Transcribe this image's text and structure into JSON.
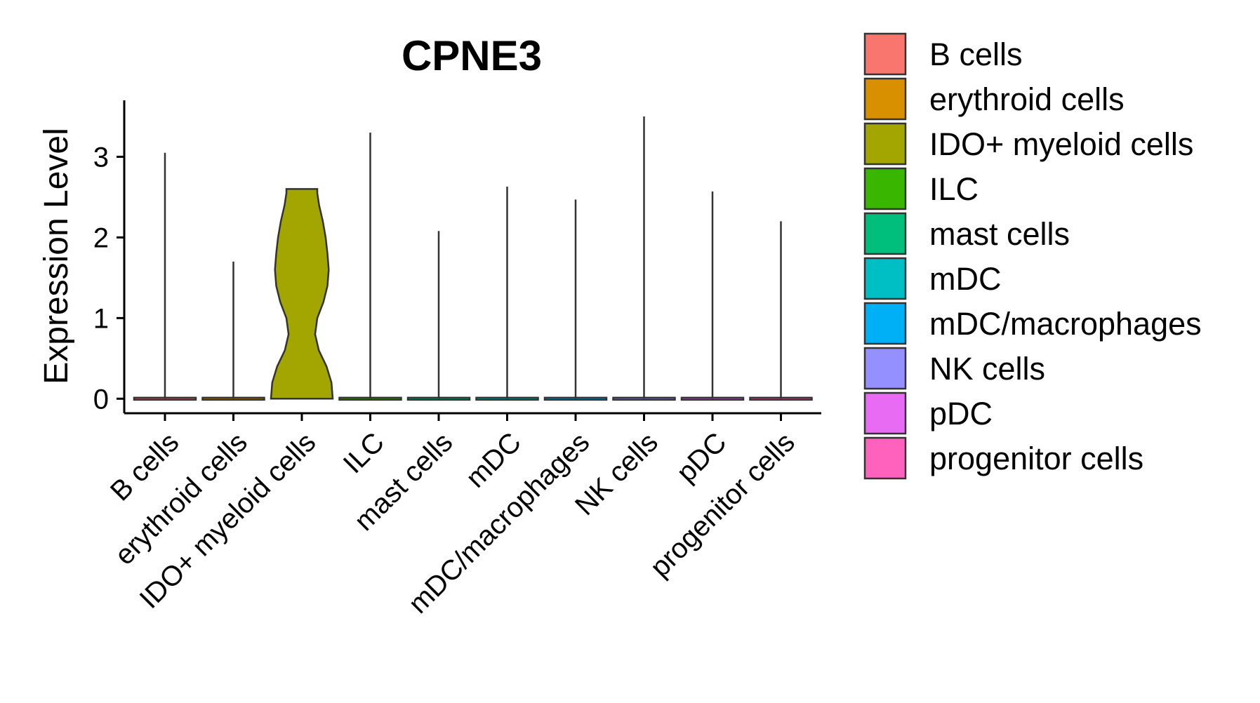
{
  "chart_data": {
    "type": "violin",
    "title": "CPNE3",
    "xlabel": "",
    "ylabel": "Expression Level",
    "ylim": [
      -0.18,
      3.7
    ],
    "yticks": [
      0,
      1,
      2,
      3
    ],
    "categories": [
      "B cells",
      "erythroid cells",
      "IDO+ myeloid cells",
      "ILC",
      "mast cells",
      "mDC",
      "mDC/macrophages",
      "NK cells",
      "pDC",
      "progenitor cells"
    ],
    "max_values": [
      3.05,
      1.7,
      2.6,
      3.3,
      2.08,
      2.63,
      2.47,
      3.5,
      2.57,
      2.2
    ],
    "density_profiles": [
      null,
      null,
      [
        [
          0,
          1.0
        ],
        [
          0.2,
          0.96
        ],
        [
          0.4,
          0.8
        ],
        [
          0.6,
          0.55
        ],
        [
          0.8,
          0.43
        ],
        [
          1.0,
          0.5
        ],
        [
          1.2,
          0.7
        ],
        [
          1.4,
          0.83
        ],
        [
          1.6,
          0.87
        ],
        [
          1.8,
          0.83
        ],
        [
          2.0,
          0.77
        ],
        [
          2.2,
          0.68
        ],
        [
          2.4,
          0.56
        ],
        [
          2.55,
          0.5
        ],
        [
          2.6,
          0.5
        ]
      ],
      null,
      null,
      null,
      null,
      null,
      null,
      null
    ],
    "colors": [
      "#F8766D",
      "#D89000",
      "#A3A500",
      "#39B600",
      "#00BF7D",
      "#00BFC4",
      "#00B0F6",
      "#9590FF",
      "#E76BF3",
      "#FF62BC"
    ],
    "legend": {
      "position": "right",
      "entries": [
        "B cells",
        "erythroid cells",
        "IDO+ myeloid cells",
        "ILC",
        "mast cells",
        "mDC",
        "mDC/macrophages",
        "NK cells",
        "pDC",
        "progenitor cells"
      ]
    }
  }
}
